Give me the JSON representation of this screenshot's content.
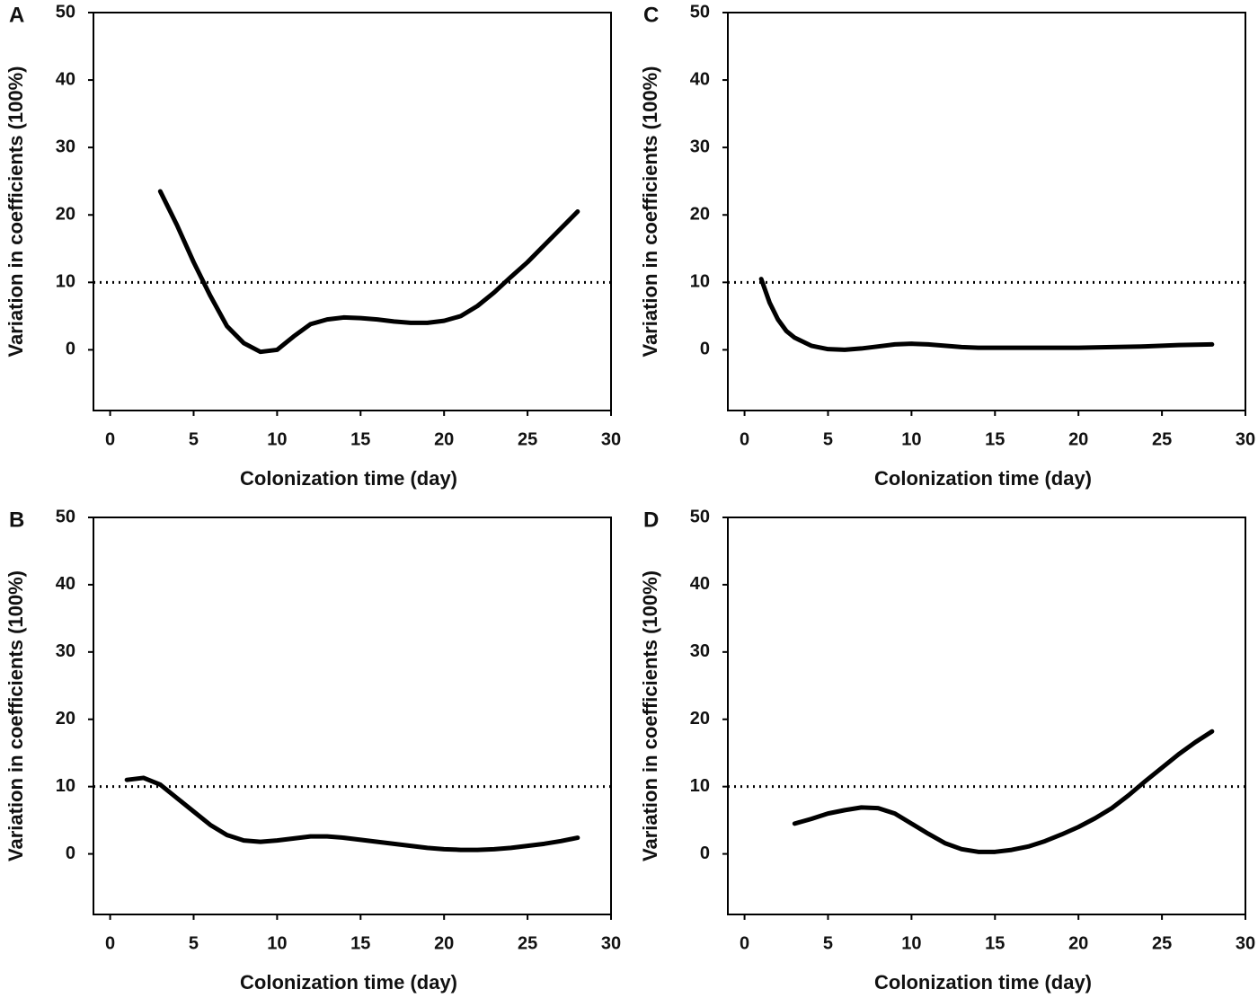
{
  "chart_data": [
    {
      "type": "line",
      "panel": "A",
      "xlabel": "Colonization time (day)",
      "ylabel": "Variation in coefficients (100%)",
      "xlim": [
        -1,
        30
      ],
      "ylim": [
        -9,
        50
      ],
      "xticks": [
        0,
        5,
        10,
        15,
        20,
        25,
        30
      ],
      "yticks": [
        0,
        10,
        20,
        30,
        40,
        50
      ],
      "hline": 10,
      "color": "#000000",
      "x": [
        3,
        4,
        5,
        6,
        7,
        8,
        9,
        10,
        11,
        12,
        13,
        14,
        15,
        16,
        17,
        18,
        19,
        20,
        21,
        22,
        23,
        24,
        25,
        26,
        27,
        28
      ],
      "values": [
        23.5,
        18.5,
        13,
        8,
        3.5,
        1,
        -0.3,
        0,
        2,
        3.8,
        4.5,
        4.8,
        4.7,
        4.5,
        4.2,
        4,
        4,
        4.3,
        5,
        6.5,
        8.5,
        10.8,
        13,
        15.5,
        18,
        20.5
      ]
    },
    {
      "type": "line",
      "panel": "C",
      "xlabel": "Colonization time (day)",
      "ylabel": "Variation in coefficients (100%)",
      "xlim": [
        -1,
        30
      ],
      "ylim": [
        -9,
        50
      ],
      "xticks": [
        0,
        5,
        10,
        15,
        20,
        25,
        30
      ],
      "yticks": [
        0,
        10,
        20,
        30,
        40,
        50
      ],
      "hline": 10,
      "color": "#000000",
      "x": [
        1,
        1.5,
        2,
        2.5,
        3,
        4,
        5,
        6,
        7,
        8,
        9,
        10,
        11,
        12,
        13,
        14,
        16,
        18,
        20,
        22,
        24,
        26,
        28
      ],
      "values": [
        10.5,
        7,
        4.5,
        2.8,
        1.8,
        0.6,
        0.1,
        0,
        0.2,
        0.5,
        0.8,
        0.9,
        0.8,
        0.6,
        0.4,
        0.3,
        0.3,
        0.3,
        0.3,
        0.4,
        0.5,
        0.7,
        0.8
      ]
    },
    {
      "type": "line",
      "panel": "B",
      "xlabel": "Colonization time (day)",
      "ylabel": "Variation in coefficients (100%)",
      "xlim": [
        -1,
        30
      ],
      "ylim": [
        -9,
        50
      ],
      "xticks": [
        0,
        5,
        10,
        15,
        20,
        25,
        30
      ],
      "yticks": [
        0,
        10,
        20,
        30,
        40,
        50
      ],
      "hline": 10,
      "color": "#000000",
      "x": [
        1,
        2,
        3,
        4,
        5,
        6,
        7,
        8,
        9,
        10,
        11,
        12,
        13,
        14,
        15,
        16,
        17,
        18,
        19,
        20,
        21,
        22,
        23,
        24,
        25,
        26,
        27,
        28
      ],
      "values": [
        11,
        11.3,
        10.3,
        8.3,
        6.3,
        4.3,
        2.8,
        2,
        1.8,
        2,
        2.3,
        2.6,
        2.6,
        2.4,
        2.1,
        1.8,
        1.5,
        1.2,
        0.9,
        0.7,
        0.6,
        0.6,
        0.7,
        0.9,
        1.2,
        1.5,
        1.9,
        2.4
      ]
    },
    {
      "type": "line",
      "panel": "D",
      "xlabel": "Colonization time (day)",
      "ylabel": "Variation in coefficients (100%)",
      "xlim": [
        -1,
        30
      ],
      "ylim": [
        -9,
        50
      ],
      "xticks": [
        0,
        5,
        10,
        15,
        20,
        25,
        30
      ],
      "yticks": [
        0,
        10,
        20,
        30,
        40,
        50
      ],
      "hline": 10,
      "color": "#000000",
      "x": [
        3,
        4,
        5,
        6,
        7,
        8,
        9,
        10,
        11,
        12,
        13,
        14,
        15,
        16,
        17,
        18,
        19,
        20,
        21,
        22,
        23,
        24,
        25,
        26,
        27,
        28
      ],
      "values": [
        4.5,
        5.2,
        6,
        6.5,
        6.9,
        6.8,
        6,
        4.5,
        3,
        1.6,
        0.7,
        0.3,
        0.3,
        0.6,
        1.1,
        1.9,
        2.9,
        4,
        5.3,
        6.8,
        8.7,
        10.8,
        12.8,
        14.8,
        16.6,
        18.2
      ]
    }
  ]
}
